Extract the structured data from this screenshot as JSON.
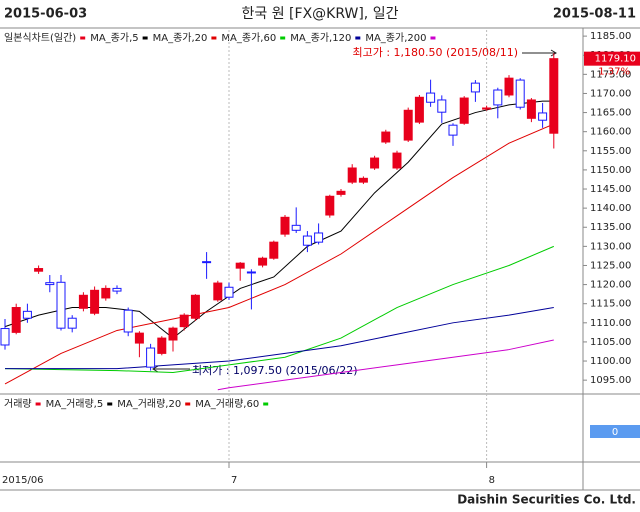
{
  "header": {
    "start_date": "2015-06-03",
    "title": "한국 원 [FX@KRW], 일간",
    "end_date": "2015-08-11"
  },
  "chart_data": {
    "type": "candlestick",
    "legend_title": "일본식차트(일간)",
    "legend_color": "#e8001c",
    "up_color": "#e8001c",
    "down_color": "#1a1aff",
    "categories": [
      "2015/06",
      null,
      null,
      null,
      null,
      null,
      null,
      null,
      null,
      null,
      null,
      null,
      null,
      null,
      null,
      null,
      null,
      null,
      null,
      null,
      "7",
      null,
      null,
      null,
      null,
      null,
      null,
      null,
      null,
      null,
      null,
      null,
      null,
      null,
      null,
      null,
      null,
      null,
      null,
      null,
      null,
      null,
      null,
      "8",
      null,
      null,
      null,
      null,
      null,
      null
    ],
    "open": [
      1108.5,
      1107.5,
      1113,
      1123.5,
      1120.5,
      1120.6,
      1111.2,
      1113.8,
      1112.5,
      1116.5,
      1119,
      1113.3,
      1104.7,
      1103.4,
      1102,
      1105.5,
      1109,
      1111.2,
      1126,
      1116,
      1119.3,
      1124.3,
      1123.3,
      1125.1,
      1126.9,
      1133.2,
      1135.5,
      1132.7,
      1133.5,
      1138.2,
      1143.6,
      1146.8,
      1146.8,
      1150.5,
      1157.3,
      1150.5,
      1157.8,
      1162.5,
      1170.1,
      1168.3,
      1161.7,
      1162.2,
      1172.7,
      1165.9,
      1170.9,
      1169.6,
      1173.5,
      1163.5,
      1164.9,
      1159.6
    ],
    "high": [
      1111,
      1115,
      1115,
      1125,
      1122.5,
      1122.5,
      1112,
      1118,
      1119.5,
      1119.8,
      1119.8,
      1114,
      1107.8,
      1104.5,
      1106.5,
      1109,
      1112.5,
      1117.5,
      1128.5,
      1121,
      1120.5,
      1125.9,
      1124,
      1127.3,
      1131.5,
      1138.2,
      1140.2,
      1134,
      1136,
      1143.5,
      1145,
      1151.5,
      1148.3,
      1153.7,
      1160.5,
      1155,
      1166.3,
      1169.6,
      1173.6,
      1169.5,
      1162.2,
      1169.3,
      1173.5,
      1166.8,
      1171.5,
      1174.8,
      1174,
      1168.8,
      1167.5,
      1180.5
    ],
    "low": [
      1103,
      1107,
      1110,
      1122.8,
      1118,
      1108,
      1107.5,
      1113,
      1112,
      1115.8,
      1117.5,
      1106.5,
      1101,
      1097.5,
      1101.5,
      1102.5,
      1108,
      1110.5,
      1121.5,
      1115.5,
      1116,
      1121,
      1113.5,
      1124.5,
      1126.5,
      1132.5,
      1133.5,
      1128.5,
      1130.5,
      1137.5,
      1143,
      1146.3,
      1146.3,
      1150,
      1156.8,
      1150,
      1157.3,
      1162,
      1166.5,
      1162.3,
      1156.3,
      1161.8,
      1167.8,
      1165.5,
      1163.5,
      1169,
      1165.8,
      1162.5,
      1161,
      1155.6
    ],
    "close": [
      1104.2,
      1114,
      1111.2,
      1124.2,
      1120,
      1108.6,
      1108.6,
      1117.2,
      1118.5,
      1119,
      1118.3,
      1107.6,
      1107.3,
      1098.4,
      1106,
      1108.6,
      1112,
      1117.2,
      1125.8,
      1120.4,
      1116.7,
      1125.6,
      1123.1,
      1126.9,
      1131.1,
      1137.6,
      1134.2,
      1130.3,
      1131.1,
      1143.1,
      1144.4,
      1150.5,
      1147.8,
      1153.1,
      1159.9,
      1154.4,
      1165.6,
      1169,
      1167.7,
      1165.1,
      1159.1,
      1168.8,
      1170.4,
      1166.2,
      1167,
      1174,
      1166.4,
      1168.3,
      1163,
      1179.1
    ],
    "series": [
      {
        "name": "MA_종가,5",
        "color": "#000000",
        "x": [
          0,
          3,
          6,
          9,
          12,
          15,
          18,
          21,
          24,
          27,
          30,
          33,
          36,
          39,
          42,
          45,
          48,
          49
        ],
        "values": [
          1109,
          1112,
          1114,
          1114,
          1113,
          1106,
          1113,
          1119,
          1122,
          1130,
          1134,
          1144,
          1152,
          1162,
          1165,
          1167,
          1168,
          1168
        ]
      },
      {
        "name": "MA_종가,20",
        "color": "#e00000",
        "x": [
          0,
          5,
          10,
          15,
          20,
          25,
          30,
          35,
          40,
          45,
          49
        ],
        "values": [
          1094,
          1102,
          1108,
          1111,
          1114,
          1120,
          1128,
          1138,
          1148,
          1157,
          1162
        ]
      },
      {
        "name": "MA_종가,60",
        "color": "#00cc00",
        "x": [
          0,
          10,
          15,
          20,
          25,
          30,
          35,
          40,
          45,
          49
        ],
        "values": [
          1098,
          1097.5,
          1097,
          1099,
          1101,
          1106,
          1114,
          1120,
          1125,
          1130
        ]
      },
      {
        "name": "MA_종가,120",
        "color": "#000099",
        "x": [
          0,
          10,
          20,
          25,
          30,
          35,
          40,
          45,
          49
        ],
        "values": [
          1098,
          1098,
          1100,
          1102,
          1104,
          1107,
          1110,
          1112,
          1114
        ]
      },
      {
        "name": "MA_종가,200",
        "color": "#cc00cc",
        "x": [
          19,
          20,
          25,
          30,
          35,
          40,
          45,
          49
        ],
        "values": [
          1092.5,
          1093,
          1095,
          1097,
          1099,
          1101,
          1103,
          1105.5
        ]
      }
    ],
    "ylim": [
      1091.9,
      1186.6
    ],
    "yticks": [
      {
        "value": 1095,
        "label": "1095.00"
      },
      {
        "value": 1100,
        "label": "1100.00"
      },
      {
        "value": 1105,
        "label": "1105.00"
      },
      {
        "value": 1110,
        "label": "1110.00"
      },
      {
        "value": 1115,
        "label": "1115.00"
      },
      {
        "value": 1120,
        "label": "1120.00"
      },
      {
        "value": 1125,
        "label": "1125.00"
      },
      {
        "value": 1130,
        "label": "1130.00"
      },
      {
        "value": 1135,
        "label": "1135.00"
      },
      {
        "value": 1140,
        "label": "1140.00"
      },
      {
        "value": 1145,
        "label": "1145.00"
      },
      {
        "value": 1150,
        "label": "1150.00"
      },
      {
        "value": 1155,
        "label": "1155.00"
      },
      {
        "value": 1160,
        "label": "1160.00"
      },
      {
        "value": 1165,
        "label": "1165.00"
      },
      {
        "value": 1170,
        "label": "1170.00"
      },
      {
        "value": 1175,
        "label": "1175.00"
      },
      {
        "value": 1180,
        "label": "1180.00"
      },
      {
        "value": 1185,
        "label": "1185.00"
      }
    ],
    "annotations": [
      {
        "text": "최고가 : 1,180.50 (2015/08/11)"
      },
      {
        "text": "최저가 : 1,097.50 (2015/06/22)"
      }
    ],
    "price_tag": {
      "value": 1179.1,
      "label": "1179.10"
    },
    "change_label": "1.37%"
  },
  "volume": {
    "label": "거래량",
    "color": "#e8001c",
    "series": [
      {
        "name": "MA_거래량,5",
        "color": "#000000"
      },
      {
        "name": "MA_거래량,20",
        "color": "#e00000"
      },
      {
        "name": "MA_거래량,60",
        "color": "#00cc00"
      }
    ],
    "yticks": [
      0
    ]
  },
  "footer": {
    "text": "Daishin Securities Co. Ltd."
  }
}
